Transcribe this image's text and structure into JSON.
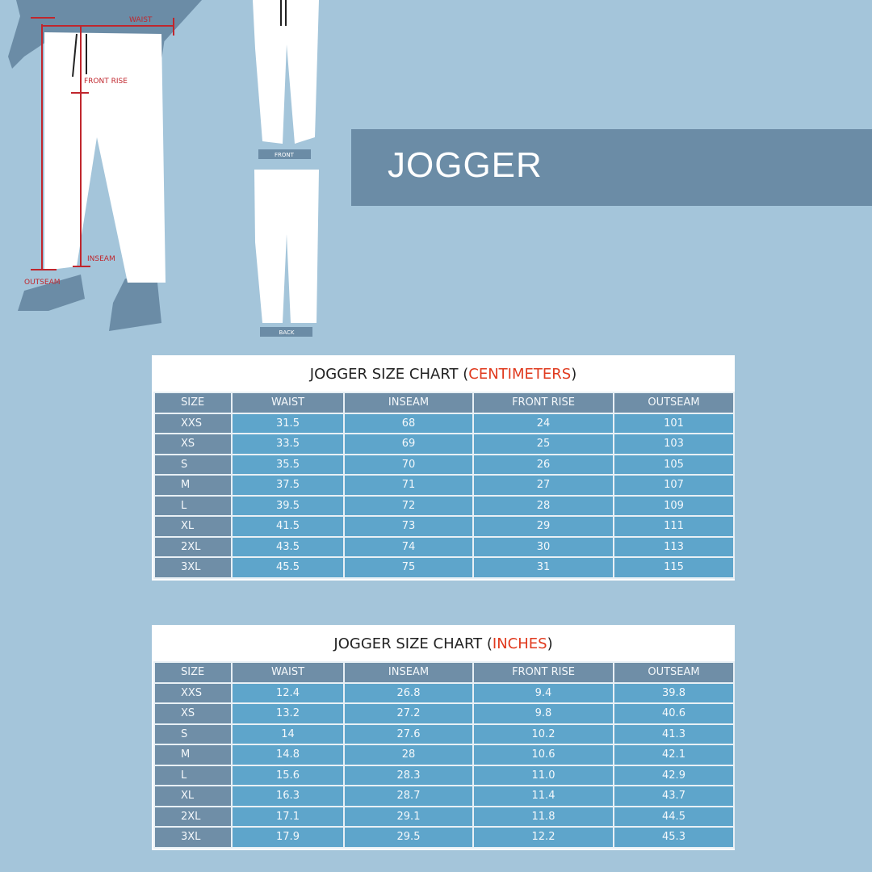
{
  "illustration": {
    "labels": {
      "waist": "WAIST",
      "front_rise": "FRONT RISE",
      "inseam": "INSEAM",
      "outseam": "OUTSEAM"
    },
    "front_tag": "FRONT",
    "back_tag": "BACK",
    "measure_color": "#c0262d"
  },
  "banner": {
    "title": "JOGGER"
  },
  "columns": [
    "SIZE",
    "WAIST",
    "INSEAM",
    "FRONT RISE",
    "OUTSEAM"
  ],
  "charts": [
    {
      "title": "JOGGER SIZE CHART (",
      "unit": "CENTIMETERS",
      "close": ")",
      "rows": [
        [
          "XXS",
          "31.5",
          "68",
          "24",
          "101"
        ],
        [
          "XS",
          "33.5",
          "69",
          "25",
          "103"
        ],
        [
          "S",
          "35.5",
          "70",
          "26",
          "105"
        ],
        [
          "M",
          "37.5",
          "71",
          "27",
          "107"
        ],
        [
          "L",
          "39.5",
          "72",
          "28",
          "109"
        ],
        [
          "XL",
          "41.5",
          "73",
          "29",
          "111"
        ],
        [
          "2XL",
          "43.5",
          "74",
          "30",
          "113"
        ],
        [
          "3XL",
          "45.5",
          "75",
          "31",
          "115"
        ]
      ]
    },
    {
      "title": "JOGGER SIZE CHART (",
      "unit": "INCHES",
      "close": ")",
      "rows": [
        [
          "XXS",
          "12.4",
          "26.8",
          "9.4",
          "39.8"
        ],
        [
          "XS",
          "13.2",
          "27.2",
          "9.8",
          "40.6"
        ],
        [
          "S",
          "14",
          "27.6",
          "10.2",
          "41.3"
        ],
        [
          "M",
          "14.8",
          "28",
          "10.6",
          "42.1"
        ],
        [
          "L",
          "15.6",
          "28.3",
          "11.0",
          "42.9"
        ],
        [
          "XL",
          "16.3",
          "28.7",
          "11.4",
          "43.7"
        ],
        [
          "2XL",
          "17.1",
          "29.1",
          "11.8",
          "44.5"
        ],
        [
          "3XL",
          "17.9",
          "29.5",
          "12.2",
          "45.3"
        ]
      ]
    }
  ],
  "colors": {
    "background": "#a4c5da",
    "banner": "#6b8ca6",
    "header": "#6f8ea7",
    "cell": "#5ea5cb",
    "unit": "#e03a1e"
  }
}
